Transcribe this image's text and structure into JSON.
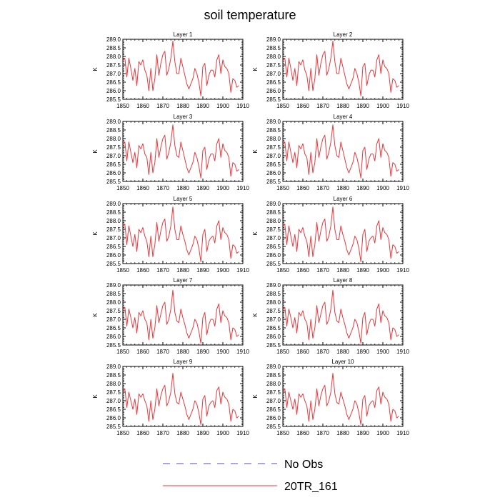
{
  "figure": {
    "title": "soil temperature"
  },
  "legend": {
    "entries": [
      {
        "label": "No Obs",
        "style": "dashed",
        "color": "#4b4bd8"
      },
      {
        "label": "20TR_161",
        "style": "solid",
        "color": "#e8383c"
      }
    ]
  },
  "chart_data": [
    {
      "type": "line",
      "title": "Layer 1",
      "xlabel": "",
      "ylabel": "K",
      "xlim": [
        1850,
        1910
      ],
      "ylim": [
        285.5,
        289.0
      ],
      "xticks": [
        1850,
        1860,
        1870,
        1880,
        1890,
        1900,
        1910
      ],
      "yticks": [
        285.5,
        286.0,
        286.5,
        287.0,
        287.5,
        288.0,
        288.5,
        289.0
      ],
      "x_start": 1850,
      "x_step": 1,
      "series": [
        {
          "name": "20TR_161",
          "color": "#e8383c",
          "values": [
            287.8,
            287.9,
            286.8,
            287.9,
            287.3,
            286.6,
            287.3,
            286.3,
            287.7,
            287.5,
            287.8,
            287.2,
            286.9,
            286.0,
            287.3,
            286.0,
            286.7,
            288.1,
            286.9,
            287.6,
            288.1,
            288.3,
            286.9,
            287.3,
            287.9,
            288.9,
            287.7,
            287.0,
            287.0,
            287.9,
            287.4,
            286.9,
            286.4,
            286.1,
            286.4,
            286.7,
            287.3,
            287.0,
            286.5,
            285.7,
            287.4,
            287.6,
            286.3,
            286.9,
            287.2,
            287.2,
            286.8,
            287.8,
            288.1,
            287.0,
            287.8,
            287.4,
            287.3,
            287.0,
            285.9,
            286.7,
            286.6,
            286.2,
            286.3
          ]
        }
      ]
    },
    {
      "type": "line",
      "title": "Layer 2",
      "xlabel": "",
      "ylabel": "K",
      "xlim": [
        1850,
        1910
      ],
      "ylim": [
        285.5,
        289.0
      ],
      "xticks": [
        1850,
        1860,
        1870,
        1880,
        1890,
        1900,
        1910
      ],
      "yticks": [
        285.5,
        286.0,
        286.5,
        287.0,
        287.5,
        288.0,
        288.5,
        289.0
      ],
      "x_start": 1850,
      "x_step": 1,
      "series": [
        {
          "name": "20TR_161",
          "color": "#e8383c",
          "values": [
            287.8,
            287.9,
            286.8,
            287.9,
            287.3,
            286.6,
            287.3,
            286.3,
            287.7,
            287.5,
            287.8,
            287.2,
            286.9,
            286.0,
            287.3,
            286.0,
            286.7,
            288.1,
            286.9,
            287.6,
            288.1,
            288.3,
            286.9,
            287.3,
            287.9,
            288.9,
            287.7,
            287.0,
            287.0,
            287.9,
            287.4,
            286.9,
            286.4,
            286.1,
            286.4,
            286.7,
            287.3,
            287.0,
            286.5,
            285.7,
            287.4,
            287.6,
            286.3,
            286.9,
            287.2,
            287.2,
            286.8,
            287.8,
            288.1,
            287.0,
            287.8,
            287.4,
            287.3,
            287.0,
            285.9,
            286.7,
            286.6,
            286.2,
            286.3
          ]
        }
      ]
    },
    {
      "type": "line",
      "title": "Layer 3",
      "xlabel": "",
      "ylabel": "K",
      "xlim": [
        1850,
        1910
      ],
      "ylim": [
        285.5,
        289.0
      ],
      "xticks": [
        1850,
        1860,
        1870,
        1880,
        1890,
        1900,
        1910
      ],
      "yticks": [
        285.5,
        286.0,
        286.5,
        287.0,
        287.5,
        288.0,
        288.5,
        289.0
      ],
      "x_start": 1850,
      "x_step": 1,
      "series": [
        {
          "name": "20TR_161",
          "color": "#e8383c",
          "values": [
            287.7,
            287.8,
            286.7,
            287.8,
            287.2,
            286.6,
            287.2,
            286.3,
            287.6,
            287.4,
            287.7,
            287.1,
            286.9,
            285.9,
            287.2,
            286.0,
            286.6,
            288.0,
            286.9,
            287.5,
            288.0,
            288.2,
            286.8,
            287.2,
            287.8,
            288.8,
            287.6,
            287.0,
            286.9,
            287.8,
            287.3,
            286.8,
            286.3,
            286.0,
            286.3,
            286.6,
            287.2,
            286.9,
            286.4,
            285.7,
            287.3,
            287.5,
            286.2,
            286.8,
            287.1,
            287.1,
            286.7,
            287.7,
            288.0,
            286.9,
            287.7,
            287.3,
            287.2,
            286.9,
            285.8,
            286.6,
            286.5,
            286.1,
            286.2
          ]
        }
      ]
    },
    {
      "type": "line",
      "title": "Layer 4",
      "xlabel": "",
      "ylabel": "K",
      "xlim": [
        1850,
        1910
      ],
      "ylim": [
        285.5,
        289.0
      ],
      "xticks": [
        1850,
        1860,
        1870,
        1880,
        1890,
        1900,
        1910
      ],
      "yticks": [
        285.5,
        286.0,
        286.5,
        287.0,
        287.5,
        288.0,
        288.5,
        289.0
      ],
      "x_start": 1850,
      "x_step": 1,
      "series": [
        {
          "name": "20TR_161",
          "color": "#e8383c",
          "values": [
            287.7,
            287.8,
            286.7,
            287.8,
            287.2,
            286.6,
            287.2,
            286.3,
            287.6,
            287.4,
            287.7,
            287.1,
            286.9,
            285.9,
            287.2,
            286.0,
            286.6,
            288.0,
            286.9,
            287.5,
            288.0,
            288.2,
            286.8,
            287.2,
            287.8,
            288.8,
            287.6,
            287.0,
            286.9,
            287.8,
            287.3,
            286.8,
            286.3,
            286.0,
            286.3,
            286.6,
            287.2,
            286.9,
            286.4,
            285.7,
            287.3,
            287.5,
            286.2,
            286.8,
            287.1,
            287.1,
            286.7,
            287.7,
            288.0,
            286.9,
            287.7,
            287.3,
            287.2,
            286.9,
            285.8,
            286.6,
            286.5,
            286.1,
            286.2
          ]
        }
      ]
    },
    {
      "type": "line",
      "title": "Layer 5",
      "xlabel": "",
      "ylabel": "K",
      "xlim": [
        1850,
        1910
      ],
      "ylim": [
        285.5,
        289.0
      ],
      "xticks": [
        1850,
        1860,
        1870,
        1880,
        1890,
        1900,
        1910
      ],
      "yticks": [
        285.5,
        286.0,
        286.5,
        287.0,
        287.5,
        288.0,
        288.5,
        289.0
      ],
      "x_start": 1850,
      "x_step": 1,
      "series": [
        {
          "name": "20TR_161",
          "color": "#e8383c",
          "values": [
            287.7,
            287.8,
            286.6,
            287.7,
            287.1,
            286.5,
            287.2,
            286.2,
            287.5,
            287.3,
            287.6,
            287.1,
            286.8,
            285.9,
            287.1,
            285.9,
            286.6,
            287.9,
            286.8,
            287.4,
            287.9,
            288.1,
            286.8,
            287.1,
            287.7,
            288.8,
            287.5,
            286.9,
            286.9,
            287.7,
            287.2,
            286.8,
            286.3,
            286.0,
            286.3,
            286.6,
            287.1,
            286.9,
            286.4,
            285.6,
            287.2,
            287.5,
            286.2,
            286.8,
            287.0,
            287.1,
            286.7,
            287.7,
            288.0,
            286.9,
            287.6,
            287.3,
            287.2,
            286.9,
            285.8,
            286.6,
            286.5,
            286.1,
            286.2
          ]
        }
      ]
    },
    {
      "type": "line",
      "title": "Layer 6",
      "xlabel": "",
      "ylabel": "K",
      "xlim": [
        1850,
        1910
      ],
      "ylim": [
        285.5,
        289.0
      ],
      "xticks": [
        1850,
        1860,
        1870,
        1880,
        1890,
        1900,
        1910
      ],
      "yticks": [
        285.5,
        286.0,
        286.5,
        287.0,
        287.5,
        288.0,
        288.5,
        289.0
      ],
      "x_start": 1850,
      "x_step": 1,
      "series": [
        {
          "name": "20TR_161",
          "color": "#e8383c",
          "values": [
            287.7,
            287.8,
            286.6,
            287.7,
            287.1,
            286.5,
            287.2,
            286.2,
            287.5,
            287.3,
            287.6,
            287.1,
            286.8,
            285.9,
            287.1,
            285.9,
            286.6,
            287.9,
            286.8,
            287.4,
            287.9,
            288.1,
            286.8,
            287.1,
            287.7,
            288.8,
            287.5,
            286.9,
            286.9,
            287.7,
            287.2,
            286.8,
            286.3,
            286.0,
            286.3,
            286.6,
            287.1,
            286.9,
            286.4,
            285.6,
            287.2,
            287.5,
            286.2,
            286.8,
            287.0,
            287.1,
            286.7,
            287.7,
            288.0,
            286.9,
            287.6,
            287.3,
            287.2,
            286.9,
            285.8,
            286.6,
            286.5,
            286.1,
            286.2
          ]
        }
      ]
    },
    {
      "type": "line",
      "title": "Layer 7",
      "xlabel": "",
      "ylabel": "K",
      "xlim": [
        1850,
        1910
      ],
      "ylim": [
        285.5,
        289.0
      ],
      "xticks": [
        1850,
        1860,
        1870,
        1880,
        1890,
        1900,
        1910
      ],
      "yticks": [
        285.5,
        286.0,
        286.5,
        287.0,
        287.5,
        288.0,
        288.5,
        289.0
      ],
      "x_start": 1850,
      "x_step": 1,
      "series": [
        {
          "name": "20TR_161",
          "color": "#e8383c",
          "values": [
            287.6,
            287.7,
            286.6,
            287.6,
            287.1,
            286.5,
            287.1,
            286.2,
            287.4,
            287.2,
            287.5,
            287.0,
            286.8,
            285.8,
            287.0,
            285.9,
            286.5,
            287.8,
            286.8,
            287.3,
            287.8,
            288.0,
            286.7,
            287.0,
            287.6,
            288.7,
            287.4,
            286.9,
            286.8,
            287.6,
            287.1,
            286.7,
            286.2,
            285.9,
            286.2,
            286.5,
            287.0,
            286.8,
            286.3,
            285.6,
            287.1,
            287.4,
            286.1,
            286.7,
            287.0,
            287.0,
            286.6,
            287.6,
            287.9,
            286.8,
            287.5,
            287.2,
            287.1,
            286.8,
            285.8,
            286.5,
            286.4,
            286.0,
            286.1
          ]
        }
      ]
    },
    {
      "type": "line",
      "title": "Layer 8",
      "xlabel": "",
      "ylabel": "K",
      "xlim": [
        1850,
        1910
      ],
      "ylim": [
        285.5,
        289.0
      ],
      "xticks": [
        1850,
        1860,
        1870,
        1880,
        1890,
        1900,
        1910
      ],
      "yticks": [
        285.5,
        286.0,
        286.5,
        287.0,
        287.5,
        288.0,
        288.5,
        289.0
      ],
      "x_start": 1850,
      "x_step": 1,
      "series": [
        {
          "name": "20TR_161",
          "color": "#e8383c",
          "values": [
            287.6,
            287.7,
            286.6,
            287.6,
            287.1,
            286.5,
            287.1,
            286.2,
            287.4,
            287.2,
            287.5,
            287.0,
            286.8,
            285.8,
            287.0,
            285.9,
            286.5,
            287.8,
            286.8,
            287.3,
            287.8,
            288.0,
            286.7,
            287.0,
            287.6,
            288.7,
            287.4,
            286.9,
            286.8,
            287.6,
            287.1,
            286.7,
            286.2,
            285.9,
            286.2,
            286.5,
            287.0,
            286.8,
            286.3,
            285.6,
            287.1,
            287.4,
            286.1,
            286.7,
            287.0,
            287.0,
            286.6,
            287.6,
            287.9,
            286.8,
            287.5,
            287.2,
            287.1,
            286.8,
            285.8,
            286.5,
            286.4,
            286.0,
            286.1
          ]
        }
      ]
    },
    {
      "type": "line",
      "title": "Layer 9",
      "xlabel": "",
      "ylabel": "K",
      "xlim": [
        1850,
        1910
      ],
      "ylim": [
        285.5,
        289.0
      ],
      "xticks": [
        1850,
        1860,
        1870,
        1880,
        1890,
        1900,
        1910
      ],
      "yticks": [
        285.5,
        286.0,
        286.5,
        287.0,
        287.5,
        288.0,
        288.5,
        289.0
      ],
      "x_start": 1850,
      "x_step": 1,
      "series": [
        {
          "name": "20TR_161",
          "color": "#e8383c",
          "values": [
            287.6,
            287.7,
            286.6,
            287.5,
            287.0,
            286.5,
            287.1,
            286.2,
            287.4,
            287.2,
            287.4,
            287.0,
            286.7,
            285.8,
            287.0,
            285.9,
            286.5,
            287.7,
            286.7,
            287.3,
            287.7,
            287.9,
            286.7,
            287.0,
            287.5,
            288.6,
            287.4,
            286.9,
            286.8,
            287.5,
            287.1,
            286.7,
            286.2,
            285.9,
            286.2,
            286.5,
            287.0,
            286.8,
            286.3,
            285.6,
            287.1,
            287.3,
            286.1,
            286.7,
            286.9,
            287.0,
            286.6,
            287.6,
            287.8,
            286.8,
            287.5,
            287.2,
            287.1,
            286.8,
            285.8,
            286.5,
            286.4,
            286.0,
            286.1
          ]
        }
      ]
    },
    {
      "type": "line",
      "title": "Layer 10",
      "xlabel": "",
      "ylabel": "K",
      "xlim": [
        1850,
        1910
      ],
      "ylim": [
        285.5,
        289.0
      ],
      "xticks": [
        1850,
        1860,
        1870,
        1880,
        1890,
        1900,
        1910
      ],
      "yticks": [
        285.5,
        286.0,
        286.5,
        287.0,
        287.5,
        288.0,
        288.5,
        289.0
      ],
      "x_start": 1850,
      "x_step": 1,
      "series": [
        {
          "name": "20TR_161",
          "color": "#e8383c",
          "values": [
            287.6,
            287.7,
            286.6,
            287.5,
            287.0,
            286.5,
            287.1,
            286.2,
            287.4,
            287.2,
            287.4,
            287.0,
            286.7,
            285.8,
            287.0,
            285.9,
            286.5,
            287.7,
            286.7,
            287.3,
            287.7,
            287.9,
            286.7,
            287.0,
            287.5,
            288.6,
            287.4,
            286.9,
            286.8,
            287.5,
            287.1,
            286.7,
            286.2,
            285.9,
            286.2,
            286.5,
            287.0,
            286.8,
            286.3,
            285.6,
            287.1,
            287.3,
            286.1,
            286.7,
            286.9,
            287.0,
            286.6,
            287.6,
            287.8,
            286.8,
            287.5,
            287.2,
            287.1,
            286.8,
            285.8,
            286.5,
            286.4,
            286.0,
            286.1
          ]
        }
      ]
    }
  ]
}
